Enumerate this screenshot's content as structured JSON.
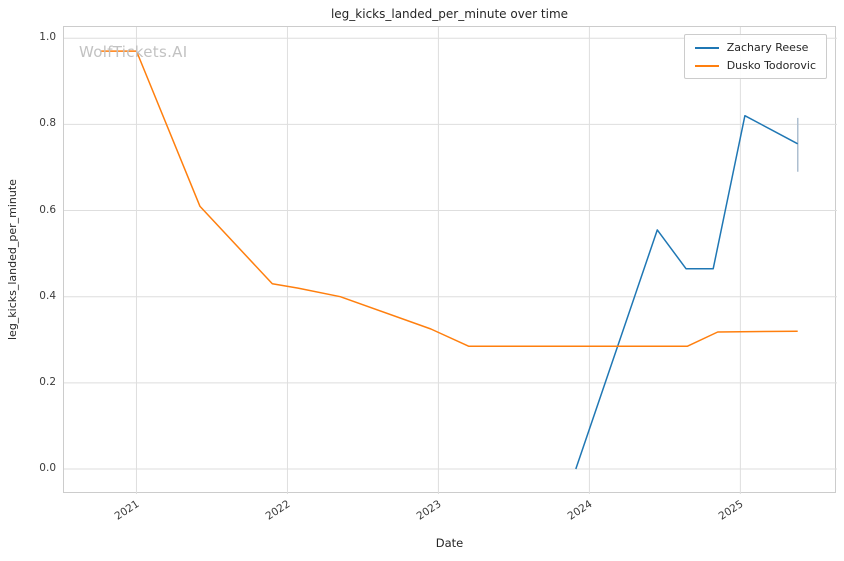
{
  "watermark": "WolfTickets.AI",
  "chart_data": {
    "type": "line",
    "title": "leg_kicks_landed_per_minute over time",
    "xlabel": "Date",
    "ylabel": "leg_kicks_landed_per_minute",
    "grid": true,
    "grid_color": "#dedede",
    "spine_color": "#cccccc",
    "legend_position": "upper right",
    "xlim": [
      2020.52,
      2025.64
    ],
    "ylim": [
      -0.058,
      1.026
    ],
    "x_ticks": [
      {
        "value": 2021,
        "label": "2021"
      },
      {
        "value": 2022,
        "label": "2022"
      },
      {
        "value": 2023,
        "label": "2023"
      },
      {
        "value": 2024,
        "label": "2024"
      },
      {
        "value": 2025,
        "label": "2025"
      }
    ],
    "y_ticks": [
      {
        "value": 0.0,
        "label": "0.0"
      },
      {
        "value": 0.2,
        "label": "0.2"
      },
      {
        "value": 0.4,
        "label": "0.4"
      },
      {
        "value": 0.6,
        "label": "0.6"
      },
      {
        "value": 0.8,
        "label": "0.8"
      },
      {
        "value": 1.0,
        "label": "1.0"
      }
    ],
    "series": [
      {
        "name": "Zachary Reese",
        "color": "#1f77b4",
        "points": [
          [
            2023.91,
            0.0
          ],
          [
            2024.45,
            0.555
          ],
          [
            2024.64,
            0.465
          ],
          [
            2024.82,
            0.465
          ],
          [
            2025.03,
            0.82
          ],
          [
            2025.38,
            0.755
          ]
        ]
      },
      {
        "name": "Dusko Todorovic",
        "color": "#ff7f0e",
        "points": [
          [
            2020.76,
            0.97
          ],
          [
            2021.0,
            0.97
          ],
          [
            2021.42,
            0.61
          ],
          [
            2021.9,
            0.43
          ],
          [
            2022.07,
            0.42
          ],
          [
            2022.35,
            0.4
          ],
          [
            2022.95,
            0.325
          ],
          [
            2023.2,
            0.285
          ],
          [
            2024.65,
            0.285
          ],
          [
            2024.85,
            0.318
          ],
          [
            2025.38,
            0.32
          ]
        ]
      }
    ],
    "error_bar": {
      "series": "Zachary Reese",
      "x": 2025.38,
      "y_low": 0.69,
      "y_high": 0.815,
      "color": "#aebfd0"
    }
  }
}
